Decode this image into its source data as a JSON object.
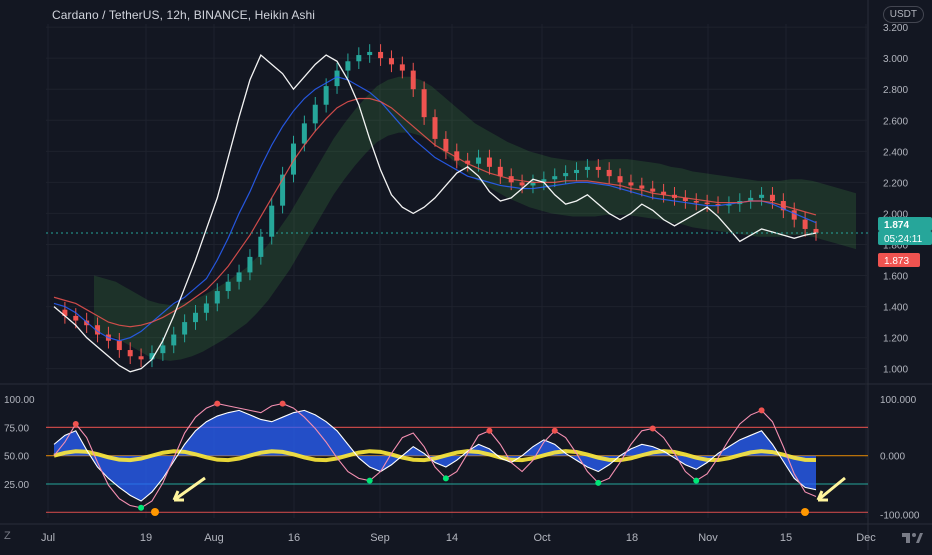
{
  "header": {
    "symbol_title": "Cardano / TetherUS, 12h, BINANCE, Heikin Ashi",
    "currency": "USDT",
    "corner_label": "Z",
    "settings_label": "⚙"
  },
  "badges": {
    "last_price": "1.874",
    "countdown": "05:24:11",
    "prev_price": "1.873"
  },
  "colors": {
    "background": "#131722",
    "grid": "#1e222d",
    "bull": "#26a69a",
    "bear": "#ef5350",
    "white_line": "#ffffff",
    "blue_line": "#2962ff",
    "orange_line": "#ff9800",
    "price_badge": "#26a69a",
    "accent_badge": "#2962ff"
  },
  "chart_data": [
    {
      "type": "line",
      "name": "price",
      "x_ticks": [
        "Jul",
        "19",
        "Aug",
        "16",
        "Sep",
        "14",
        "Oct",
        "18",
        "Nov",
        "15",
        "Dec"
      ],
      "y_ticks": [
        "3.200",
        "3.000",
        "2.800",
        "2.600",
        "2.400",
        "2.200",
        "2.000",
        "1.800",
        "1.600",
        "1.400",
        "1.200",
        "1.000"
      ],
      "ylim": [
        0.94,
        3.22
      ],
      "series": [
        {
          "values": [
            1.38,
            1.34,
            1.31,
            1.28,
            1.22,
            1.18,
            1.12,
            1.08,
            1.06,
            1.1,
            1.15,
            1.22,
            1.3,
            1.36,
            1.42,
            1.5,
            1.56,
            1.62,
            1.72,
            1.85,
            2.05,
            2.25,
            2.45,
            2.58,
            2.7,
            2.82,
            2.92,
            2.98,
            3.02,
            3.04,
            3.0,
            2.96,
            2.92,
            2.8,
            2.62,
            2.48,
            2.4,
            2.34,
            2.32,
            2.36,
            2.3,
            2.24,
            2.2,
            2.18,
            2.2,
            2.22,
            2.24,
            2.26,
            2.28,
            2.3,
            2.28,
            2.24,
            2.2,
            2.18,
            2.16,
            2.14,
            2.12,
            2.1,
            2.08,
            2.07,
            2.06,
            2.05,
            2.06,
            2.08,
            2.1,
            2.12,
            2.08,
            2.02,
            1.96,
            1.9,
            1.874
          ]
        },
        {
          "values": [
            1.42,
            1.4,
            1.36,
            1.3,
            1.24,
            1.2,
            1.18,
            1.2,
            1.24,
            1.3,
            1.36,
            1.42,
            1.46,
            1.52,
            1.58,
            1.7,
            1.84,
            2.0,
            2.14,
            2.3,
            2.44,
            2.56,
            2.66,
            2.74,
            2.8,
            2.84,
            2.88,
            2.86,
            2.82,
            2.78,
            2.72,
            2.64,
            2.56,
            2.48,
            2.42,
            2.36,
            2.32,
            2.28,
            2.24,
            2.22,
            2.2,
            2.18,
            2.17,
            2.16,
            2.16,
            2.17,
            2.18,
            2.19,
            2.2,
            2.2,
            2.19,
            2.18,
            2.16,
            2.14,
            2.12,
            2.1,
            2.09,
            2.08,
            2.07,
            2.06,
            2.05,
            2.05,
            2.06,
            2.07,
            2.08,
            2.08,
            2.06,
            2.03,
            2.0,
            1.97,
            1.94
          ]
        },
        {
          "values": [
            1.46,
            1.44,
            1.42,
            1.38,
            1.34,
            1.3,
            1.28,
            1.27,
            1.28,
            1.3,
            1.33,
            1.37,
            1.41,
            1.46,
            1.51,
            1.58,
            1.66,
            1.76,
            1.86,
            1.98,
            2.1,
            2.22,
            2.34,
            2.44,
            2.53,
            2.61,
            2.68,
            2.72,
            2.74,
            2.74,
            2.72,
            2.68,
            2.62,
            2.56,
            2.5,
            2.44,
            2.4,
            2.36,
            2.32,
            2.29,
            2.26,
            2.24,
            2.22,
            2.21,
            2.2,
            2.2,
            2.2,
            2.21,
            2.21,
            2.21,
            2.2,
            2.19,
            2.18,
            2.16,
            2.15,
            2.13,
            2.12,
            2.11,
            2.1,
            2.09,
            2.08,
            2.07,
            2.07,
            2.07,
            2.08,
            2.08,
            2.07,
            2.05,
            2.03,
            2.01,
            1.99
          ]
        },
        {
          "values": [
            1.4,
            1.34,
            1.28,
            1.2,
            1.14,
            1.08,
            1.02,
            0.98,
            1.0,
            1.06,
            1.18,
            1.34,
            1.52,
            1.7,
            1.9,
            2.1,
            2.36,
            2.62,
            2.86,
            3.02,
            2.96,
            2.9,
            2.8,
            2.88,
            2.96,
            3.02,
            2.98,
            2.86,
            2.7,
            2.48,
            2.28,
            2.12,
            2.04,
            2.0,
            2.04,
            2.1,
            2.18,
            2.26,
            2.3,
            2.24,
            2.14,
            2.08,
            2.1,
            2.16,
            2.22,
            2.2,
            2.12,
            2.06,
            2.08,
            2.12,
            2.06,
            2.0,
            1.96,
            2.0,
            2.06,
            2.02,
            1.96,
            1.92,
            1.96,
            2.0,
            2.04,
            1.98,
            1.9,
            1.82,
            1.86,
            1.9,
            1.88,
            1.86,
            1.84,
            1.86,
            1.874
          ]
        }
      ]
    },
    {
      "type": "line",
      "name": "oscillator",
      "left_ticks": [
        "100.00",
        "75.00",
        "50.00",
        "25.00"
      ],
      "right_ticks": [
        "100.000",
        "0.000",
        "-100.000"
      ],
      "ylim": [
        -5,
        108
      ],
      "series": [
        {
          "values": [
            60,
            68,
            72,
            55,
            40,
            30,
            22,
            15,
            10,
            18,
            30,
            45,
            60,
            72,
            80,
            85,
            88,
            90,
            86,
            82,
            80,
            84,
            88,
            90,
            86,
            80,
            72,
            60,
            48,
            40,
            36,
            42,
            50,
            58,
            52,
            44,
            40,
            46,
            54,
            60,
            56,
            48,
            44,
            50,
            58,
            64,
            60,
            52,
            46,
            40,
            36,
            42,
            50,
            56,
            60,
            58,
            54,
            48,
            42,
            38,
            44,
            52,
            58,
            64,
            68,
            72,
            60,
            45,
            30,
            22,
            20
          ]
        },
        {
          "values": [
            50,
            62,
            78,
            66,
            44,
            24,
            12,
            6,
            4,
            10,
            26,
            48,
            70,
            84,
            92,
            96,
            94,
            92,
            90,
            88,
            94,
            96,
            92,
            84,
            74,
            62,
            48,
            36,
            30,
            28,
            36,
            52,
            66,
            70,
            58,
            40,
            30,
            36,
            52,
            68,
            72,
            60,
            44,
            36,
            46,
            62,
            72,
            66,
            52,
            36,
            26,
            30,
            44,
            60,
            72,
            74,
            66,
            52,
            36,
            28,
            34,
            48,
            64,
            78,
            86,
            90,
            80,
            58,
            34,
            18,
            14
          ]
        }
      ]
    }
  ]
}
